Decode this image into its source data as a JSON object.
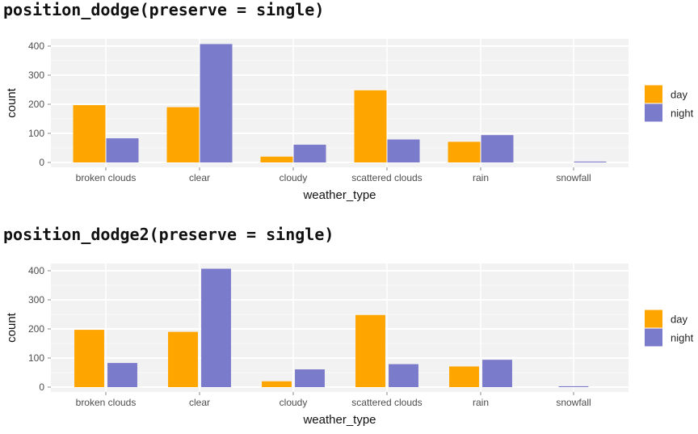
{
  "chart_data": [
    {
      "type": "bar",
      "title": "position_dodge(preserve = single)",
      "xlabel": "weather_type",
      "ylabel": "count",
      "ylim": [
        0,
        420
      ],
      "yticks": [
        0,
        100,
        200,
        300,
        400
      ],
      "categories": [
        "broken clouds",
        "clear",
        "cloudy",
        "scattered clouds",
        "rain",
        "snowfall"
      ],
      "series": [
        {
          "name": "day",
          "color": "#FFA500",
          "values": [
            197,
            190,
            20,
            248,
            71,
            null
          ]
        },
        {
          "name": "night",
          "color": "#7B7BCB",
          "values": [
            83,
            407,
            61,
            79,
            94,
            3
          ]
        }
      ],
      "legend": "right"
    },
    {
      "type": "bar",
      "title": "position_dodge2(preserve = single)",
      "xlabel": "weather_type",
      "ylabel": "count",
      "ylim": [
        0,
        420
      ],
      "yticks": [
        0,
        100,
        200,
        300,
        400
      ],
      "categories": [
        "broken clouds",
        "clear",
        "cloudy",
        "scattered clouds",
        "rain",
        "snowfall"
      ],
      "series": [
        {
          "name": "day",
          "color": "#FFA500",
          "values": [
            197,
            190,
            20,
            248,
            71,
            null
          ]
        },
        {
          "name": "night",
          "color": "#7B7BCB",
          "values": [
            83,
            407,
            61,
            79,
            94,
            3
          ]
        }
      ],
      "legend": "right"
    }
  ]
}
